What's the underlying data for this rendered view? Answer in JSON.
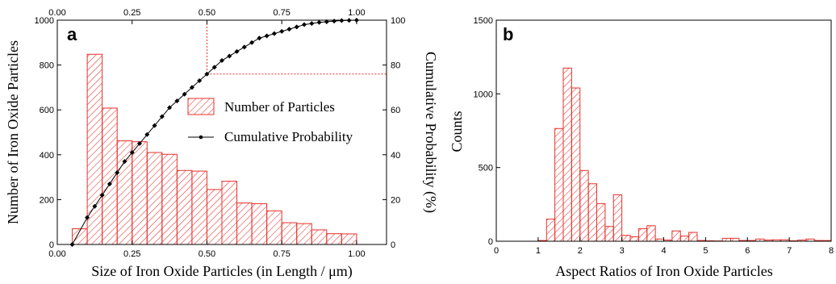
{
  "colors": {
    "bar": "#e8302a",
    "line": "#000000",
    "ref_line": "#e8302a"
  },
  "chart_data": [
    {
      "panel": "a",
      "type": "bar",
      "title": "",
      "xlabel": "Size of Iron Oxide Particles (in Length / μm)",
      "ylabel": "Number of Iron Oxide Particles",
      "y2label": "Cumulative Probability (%)",
      "xlim": [
        0,
        1.1
      ],
      "ylim": [
        0,
        1000
      ],
      "y2lim": [
        0,
        100
      ],
      "xticks": [
        "0.00",
        "0.25",
        "0.50",
        "0.75",
        "1.00"
      ],
      "yticks": [
        "0",
        "200",
        "400",
        "600",
        "800",
        "1000"
      ],
      "y2ticks": [
        "0",
        "20",
        "40",
        "60",
        "80",
        "100"
      ],
      "top_xticks": [
        "0.00",
        "0.25",
        "0.50",
        "0.75",
        "1.00"
      ],
      "bin_width": 0.05,
      "series": [
        {
          "name": "Number of Particles",
          "type": "bar",
          "x": [
            0.075,
            0.125,
            0.175,
            0.225,
            0.275,
            0.325,
            0.375,
            0.425,
            0.475,
            0.525,
            0.575,
            0.625,
            0.675,
            0.725,
            0.775,
            0.825,
            0.875,
            0.925,
            0.975
          ],
          "values": [
            70,
            848,
            608,
            462,
            458,
            410,
            402,
            330,
            327,
            245,
            282,
            185,
            182,
            150,
            97,
            93,
            65,
            48,
            47
          ]
        },
        {
          "name": "Cumulative Probability",
          "type": "line",
          "axis": "y2",
          "x": [
            0.05,
            0.1,
            0.125,
            0.15,
            0.175,
            0.2,
            0.225,
            0.25,
            0.275,
            0.3,
            0.325,
            0.35,
            0.375,
            0.4,
            0.425,
            0.45,
            0.475,
            0.5,
            0.525,
            0.55,
            0.575,
            0.6,
            0.625,
            0.65,
            0.675,
            0.7,
            0.725,
            0.75,
            0.775,
            0.8,
            0.825,
            0.85,
            0.875,
            0.9,
            0.925,
            0.95,
            0.975,
            1.0
          ],
          "values": [
            0,
            12,
            17,
            22,
            27,
            32,
            37,
            41,
            45,
            49,
            53,
            57,
            61,
            64,
            67,
            70,
            73,
            76,
            79,
            82,
            84,
            86,
            88,
            90,
            92,
            93,
            94,
            95,
            96,
            97,
            98,
            98.5,
            99,
            99.3,
            99.6,
            99.8,
            99.9,
            100
          ]
        }
      ],
      "reference_lines": {
        "x": 0.5,
        "y2": 76
      },
      "legend": {
        "placement": "center-right"
      }
    },
    {
      "panel": "b",
      "type": "bar",
      "title": "",
      "xlabel": "Aspect Ratios of Iron Oxide Particles",
      "ylabel": "Counts",
      "xlim": [
        0,
        8
      ],
      "ylim": [
        0,
        1500
      ],
      "xticks": [
        "0",
        "1",
        "2",
        "3",
        "4",
        "5",
        "6",
        "7",
        "8"
      ],
      "yticks": [
        "0",
        "500",
        "1000",
        "1500"
      ],
      "bin_width": 0.2,
      "series": [
        {
          "name": "",
          "type": "bar",
          "x": [
            1.1,
            1.3,
            1.5,
            1.7,
            1.9,
            2.1,
            2.3,
            2.5,
            2.7,
            2.9,
            3.1,
            3.3,
            3.5,
            3.7,
            3.9,
            4.1,
            4.3,
            4.5,
            4.7,
            4.9,
            5.1,
            5.3,
            5.5,
            5.7,
            5.9,
            6.1,
            6.3,
            6.5,
            6.7,
            6.9,
            7.1,
            7.3,
            7.5,
            7.7,
            7.9
          ],
          "values": [
            5,
            150,
            765,
            1175,
            1040,
            480,
            390,
            255,
            100,
            315,
            40,
            30,
            85,
            105,
            15,
            8,
            70,
            35,
            60,
            5,
            3,
            2,
            20,
            20,
            5,
            5,
            15,
            8,
            10,
            10,
            3,
            8,
            15,
            5,
            5
          ]
        }
      ]
    }
  ]
}
